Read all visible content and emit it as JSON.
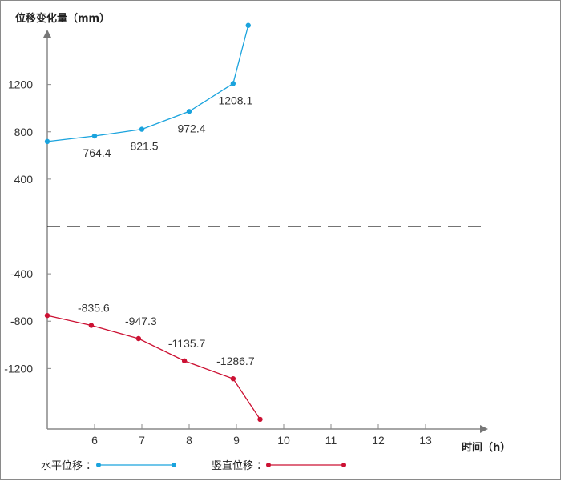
{
  "chart_data": {
    "type": "line",
    "ylabel": "位移变化量（mm）",
    "xlabel": "时间（h）",
    "xlim": [
      5,
      14.2
    ],
    "x_ticks": [
      "6",
      "7",
      "8",
      "9",
      "10",
      "11",
      "12",
      "13"
    ],
    "y_ticks": [
      "1200",
      "800",
      "400",
      "-400",
      "-800",
      "-1200"
    ],
    "grid": false,
    "zero_line": "dashed",
    "legend": "bottom-left",
    "series": [
      {
        "name": "水平位移",
        "color": "#1aa3dd",
        "points": [
          {
            "x": 5.0,
            "y": 718,
            "label": ""
          },
          {
            "x": 6.0,
            "y": 764.4,
            "label": "764.4"
          },
          {
            "x": 7.0,
            "y": 821.5,
            "label": "821.5"
          },
          {
            "x": 8.0,
            "y": 972.4,
            "label": "972.4"
          },
          {
            "x": 8.93,
            "y": 1208.1,
            "label": "1208.1"
          },
          {
            "x": 9.25,
            "y": 1700,
            "label": ""
          }
        ]
      },
      {
        "name": "竖直位移",
        "color": "#cc1133",
        "points": [
          {
            "x": 5.0,
            "y": -752,
            "label": ""
          },
          {
            "x": 5.93,
            "y": -835.6,
            "label": "-835.6"
          },
          {
            "x": 6.93,
            "y": -947.3,
            "label": "-947.3"
          },
          {
            "x": 7.9,
            "y": -1135.7,
            "label": "-1135.7"
          },
          {
            "x": 8.93,
            "y": -1286.7,
            "label": "-1286.7"
          },
          {
            "x": 9.5,
            "y": -1630,
            "label": ""
          }
        ]
      }
    ]
  }
}
